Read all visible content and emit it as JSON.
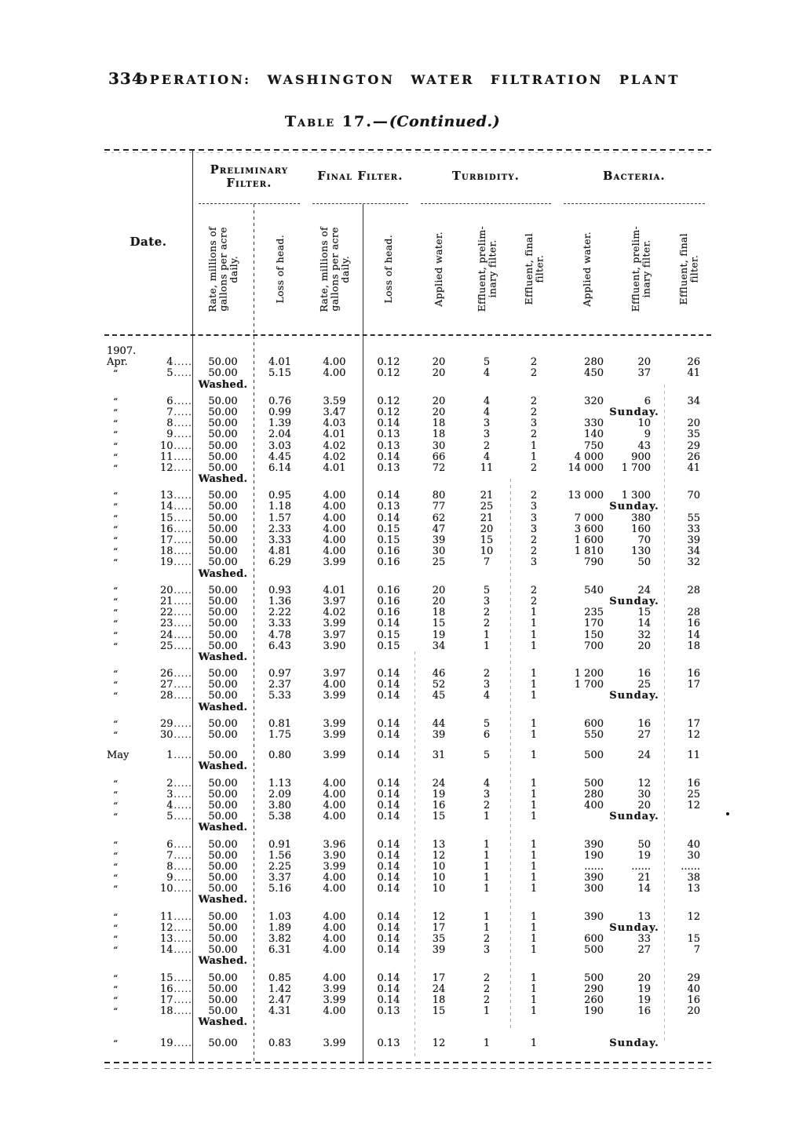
{
  "page": {
    "number": "334",
    "running_title": "OPERATION: WASHINGTON WATER FILTRATION PLANT",
    "table_title": "Table 17.—",
    "table_title_continued": "(Continued.)"
  },
  "table": {
    "date_header": "Date.",
    "groups": [
      "Preliminary Filter.",
      "Final Filter.",
      "Turbidity.",
      "Bacteria."
    ],
    "col_headers": [
      "Rate, millions of\ngallons per acre\ndaily.",
      "Loss of head.",
      "Rate, millions of\ngallons per acre\ndaily.",
      "Loss of head.",
      "Applied water.",
      "Effluent, prelim-\ninary filter.",
      "Effluent, final\nfilter.",
      "Applied water.",
      "Effluent, prelim-\ninary filter.",
      "Effluent, final\nfilter."
    ],
    "leader": ".....",
    "washed_label": "Washed.",
    "sunday_label": "Sunday.",
    "rows": [
      {
        "t": "y",
        "label": "1907."
      },
      {
        "t": "d",
        "m": "Apr.",
        "day": "4",
        "v": [
          "50.00",
          "4.01",
          "4.00",
          "0.12",
          "20",
          "5",
          "2",
          "280",
          "20",
          "26"
        ]
      },
      {
        "t": "d",
        "m": "“",
        "day": "5",
        "v": [
          "50.00",
          "5.15",
          "4.00",
          "0.12",
          "20",
          "4",
          "2",
          "450",
          "37",
          "41"
        ]
      },
      {
        "t": "w"
      },
      {
        "t": "d",
        "m": "“",
        "day": "6",
        "v": [
          "50.00",
          "0.76",
          "3.59",
          "0.12",
          "20",
          "4",
          "2",
          "320",
          "6",
          "34"
        ]
      },
      {
        "t": "d",
        "m": "“",
        "day": "7",
        "v": [
          "50.00",
          "0.99",
          "3.47",
          "0.12",
          "20",
          "4",
          "2"
        ],
        "sunday": true
      },
      {
        "t": "d",
        "m": "“",
        "day": "8",
        "v": [
          "50.00",
          "1.39",
          "4.03",
          "0.14",
          "18",
          "3",
          "3",
          "330",
          "10",
          "20"
        ]
      },
      {
        "t": "d",
        "m": "“",
        "day": "9",
        "v": [
          "50.00",
          "2.04",
          "4.01",
          "0.13",
          "18",
          "3",
          "2",
          "140",
          "9",
          "35"
        ]
      },
      {
        "t": "d",
        "m": "“",
        "day": "10",
        "v": [
          "50.00",
          "3.03",
          "4.02",
          "0.13",
          "30",
          "2",
          "1",
          "750",
          "43",
          "29"
        ]
      },
      {
        "t": "d",
        "m": "“",
        "day": "11",
        "v": [
          "50.00",
          "4.45",
          "4.02",
          "0.14",
          "66",
          "4",
          "1",
          "4 000",
          "900",
          "26"
        ]
      },
      {
        "t": "d",
        "m": "“",
        "day": "12",
        "v": [
          "50.00",
          "6.14",
          "4.01",
          "0.13",
          "72",
          "11",
          "2",
          "14 000",
          "1 700",
          "41"
        ]
      },
      {
        "t": "w"
      },
      {
        "t": "d",
        "m": "“",
        "day": "13",
        "v": [
          "50.00",
          "0.95",
          "4.00",
          "0.14",
          "80",
          "21",
          "2",
          "13 000",
          "1 300",
          "70"
        ]
      },
      {
        "t": "d",
        "m": "“",
        "day": "14",
        "v": [
          "50.00",
          "1.18",
          "4.00",
          "0.13",
          "77",
          "25",
          "3"
        ],
        "sunday": true
      },
      {
        "t": "d",
        "m": "“",
        "day": "15",
        "v": [
          "50.00",
          "1.57",
          "4.00",
          "0.14",
          "62",
          "21",
          "3",
          "7 000",
          "380",
          "55"
        ]
      },
      {
        "t": "d",
        "m": "“",
        "day": "16",
        "v": [
          "50.00",
          "2.33",
          "4.00",
          "0.15",
          "47",
          "20",
          "3",
          "3 600",
          "160",
          "33"
        ]
      },
      {
        "t": "d",
        "m": "“",
        "day": "17",
        "v": [
          "50.00",
          "3.33",
          "4.00",
          "0.15",
          "39",
          "15",
          "2",
          "1 600",
          "70",
          "39"
        ]
      },
      {
        "t": "d",
        "m": "“",
        "day": "18",
        "v": [
          "50.00",
          "4.81",
          "4.00",
          "0.16",
          "30",
          "10",
          "2",
          "1 810",
          "130",
          "34"
        ]
      },
      {
        "t": "d",
        "m": "“",
        "day": "19",
        "v": [
          "50.00",
          "6.29",
          "3.99",
          "0.16",
          "25",
          "7",
          "3",
          "790",
          "50",
          "32"
        ]
      },
      {
        "t": "w"
      },
      {
        "t": "d",
        "m": "“",
        "day": "20",
        "v": [
          "50.00",
          "0.93",
          "4.01",
          "0.16",
          "20",
          "5",
          "2",
          "540",
          "24",
          "28"
        ]
      },
      {
        "t": "d",
        "m": "“",
        "day": "21",
        "v": [
          "50.00",
          "1.36",
          "3.97",
          "0.16",
          "20",
          "3",
          "2"
        ],
        "sunday": true
      },
      {
        "t": "d",
        "m": "“",
        "day": "22",
        "v": [
          "50.00",
          "2.22",
          "4.02",
          "0.16",
          "18",
          "2",
          "1",
          "235",
          "15",
          "28"
        ]
      },
      {
        "t": "d",
        "m": "“",
        "day": "23",
        "v": [
          "50.00",
          "3.33",
          "3.99",
          "0.14",
          "15",
          "2",
          "1",
          "170",
          "14",
          "16"
        ]
      },
      {
        "t": "d",
        "m": "“",
        "day": "24",
        "v": [
          "50.00",
          "4.78",
          "3.97",
          "0.15",
          "19",
          "1",
          "1",
          "150",
          "32",
          "14"
        ]
      },
      {
        "t": "d",
        "m": "“",
        "day": "25",
        "v": [
          "50.00",
          "6.43",
          "3.90",
          "0.15",
          "34",
          "1",
          "1",
          "700",
          "20",
          "18"
        ]
      },
      {
        "t": "w"
      },
      {
        "t": "d",
        "m": "“",
        "day": "26",
        "v": [
          "50.00",
          "0.97",
          "3.97",
          "0.14",
          "46",
          "2",
          "1",
          "1 200",
          "16",
          "16"
        ]
      },
      {
        "t": "d",
        "m": "“",
        "day": "27",
        "v": [
          "50.00",
          "2.37",
          "4.00",
          "0.14",
          "52",
          "3",
          "1",
          "1 700",
          "25",
          "17"
        ]
      },
      {
        "t": "d",
        "m": "“",
        "day": "28",
        "v": [
          "50.00",
          "5.33",
          "3.99",
          "0.14",
          "45",
          "4",
          "1"
        ],
        "sunday": true
      },
      {
        "t": "w"
      },
      {
        "t": "d",
        "m": "“",
        "day": "29",
        "v": [
          "50.00",
          "0.81",
          "3.99",
          "0.14",
          "44",
          "5",
          "1",
          "600",
          "16",
          "17"
        ]
      },
      {
        "t": "d",
        "m": "“",
        "day": "30",
        "v": [
          "50.00",
          "1.75",
          "3.99",
          "0.14",
          "39",
          "6",
          "1",
          "550",
          "27",
          "12"
        ]
      },
      {
        "t": "d",
        "m": "May",
        "day": "1",
        "gap": true,
        "v": [
          "50.00",
          "0.80",
          "3.99",
          "0.14",
          "31",
          "5",
          "1",
          "500",
          "24",
          "11"
        ]
      },
      {
        "t": "w"
      },
      {
        "t": "d",
        "m": "“",
        "day": "2",
        "v": [
          "50.00",
          "1.13",
          "4.00",
          "0.14",
          "24",
          "4",
          "1",
          "500",
          "12",
          "16"
        ]
      },
      {
        "t": "d",
        "m": "“",
        "day": "3",
        "v": [
          "50.00",
          "2.09",
          "4.00",
          "0.14",
          "19",
          "3",
          "1",
          "280",
          "30",
          "25"
        ]
      },
      {
        "t": "d",
        "m": "“",
        "day": "4",
        "v": [
          "50.00",
          "3.80",
          "4.00",
          "0.14",
          "16",
          "2",
          "1",
          "400",
          "20",
          "12"
        ]
      },
      {
        "t": "d",
        "m": "“",
        "day": "5",
        "v": [
          "50.00",
          "5.38",
          "4.00",
          "0.14",
          "15",
          "1",
          "1"
        ],
        "sunday": true
      },
      {
        "t": "w"
      },
      {
        "t": "d",
        "m": "“",
        "day": "6",
        "v": [
          "50.00",
          "0.91",
          "3.96",
          "0.14",
          "13",
          "1",
          "1",
          "390",
          "50",
          "40"
        ]
      },
      {
        "t": "d",
        "m": "“",
        "day": "7",
        "v": [
          "50.00",
          "1.56",
          "3.90",
          "0.14",
          "12",
          "1",
          "1",
          "190",
          "19",
          "30"
        ]
      },
      {
        "t": "d",
        "m": "“",
        "day": "8",
        "v": [
          "50.00",
          "2.25",
          "3.99",
          "0.14",
          "10",
          "1",
          "1",
          "......",
          "......",
          "......"
        ]
      },
      {
        "t": "d",
        "m": "“",
        "day": "9",
        "v": [
          "50.00",
          "3.37",
          "4.00",
          "0.14",
          "10",
          "1",
          "1",
          "390",
          "21",
          "38"
        ]
      },
      {
        "t": "d",
        "m": "“",
        "day": "10",
        "v": [
          "50.00",
          "5.16",
          "4.00",
          "0.14",
          "10",
          "1",
          "1",
          "300",
          "14",
          "13"
        ]
      },
      {
        "t": "w"
      },
      {
        "t": "d",
        "m": "“",
        "day": "11",
        "v": [
          "50.00",
          "1.03",
          "4.00",
          "0.14",
          "12",
          "1",
          "1",
          "390",
          "13",
          "12"
        ]
      },
      {
        "t": "d",
        "m": "“",
        "day": "12",
        "v": [
          "50.00",
          "1.89",
          "4.00",
          "0.14",
          "17",
          "1",
          "1"
        ],
        "sunday": true
      },
      {
        "t": "d",
        "m": "“",
        "day": "13",
        "v": [
          "50.00",
          "3.82",
          "4.00",
          "0.14",
          "35",
          "2",
          "1",
          "600",
          "33",
          "15"
        ]
      },
      {
        "t": "d",
        "m": "“",
        "day": "14",
        "v": [
          "50.00",
          "6.31",
          "4.00",
          "0.14",
          "39",
          "3",
          "1",
          "500",
          "27",
          "7"
        ]
      },
      {
        "t": "w"
      },
      {
        "t": "d",
        "m": "“",
        "day": "15",
        "v": [
          "50.00",
          "0.85",
          "4.00",
          "0.14",
          "17",
          "2",
          "1",
          "500",
          "20",
          "29"
        ]
      },
      {
        "t": "d",
        "m": "“",
        "day": "16",
        "v": [
          "50.00",
          "1.42",
          "3.99",
          "0.14",
          "24",
          "2",
          "1",
          "290",
          "19",
          "40"
        ]
      },
      {
        "t": "d",
        "m": "“",
        "day": "17",
        "v": [
          "50.00",
          "2.47",
          "3.99",
          "0.14",
          "18",
          "2",
          "1",
          "260",
          "19",
          "16"
        ]
      },
      {
        "t": "d",
        "m": "“",
        "day": "18",
        "v": [
          "50.00",
          "4.31",
          "4.00",
          "0.13",
          "15",
          "1",
          "1",
          "190",
          "16",
          "20"
        ]
      },
      {
        "t": "w"
      },
      {
        "t": "d",
        "m": "“",
        "day": "19",
        "gap": true,
        "v": [
          "50.00",
          "0.83",
          "3.99",
          "0.13",
          "12",
          "1",
          "1"
        ],
        "sunday": true
      }
    ]
  }
}
